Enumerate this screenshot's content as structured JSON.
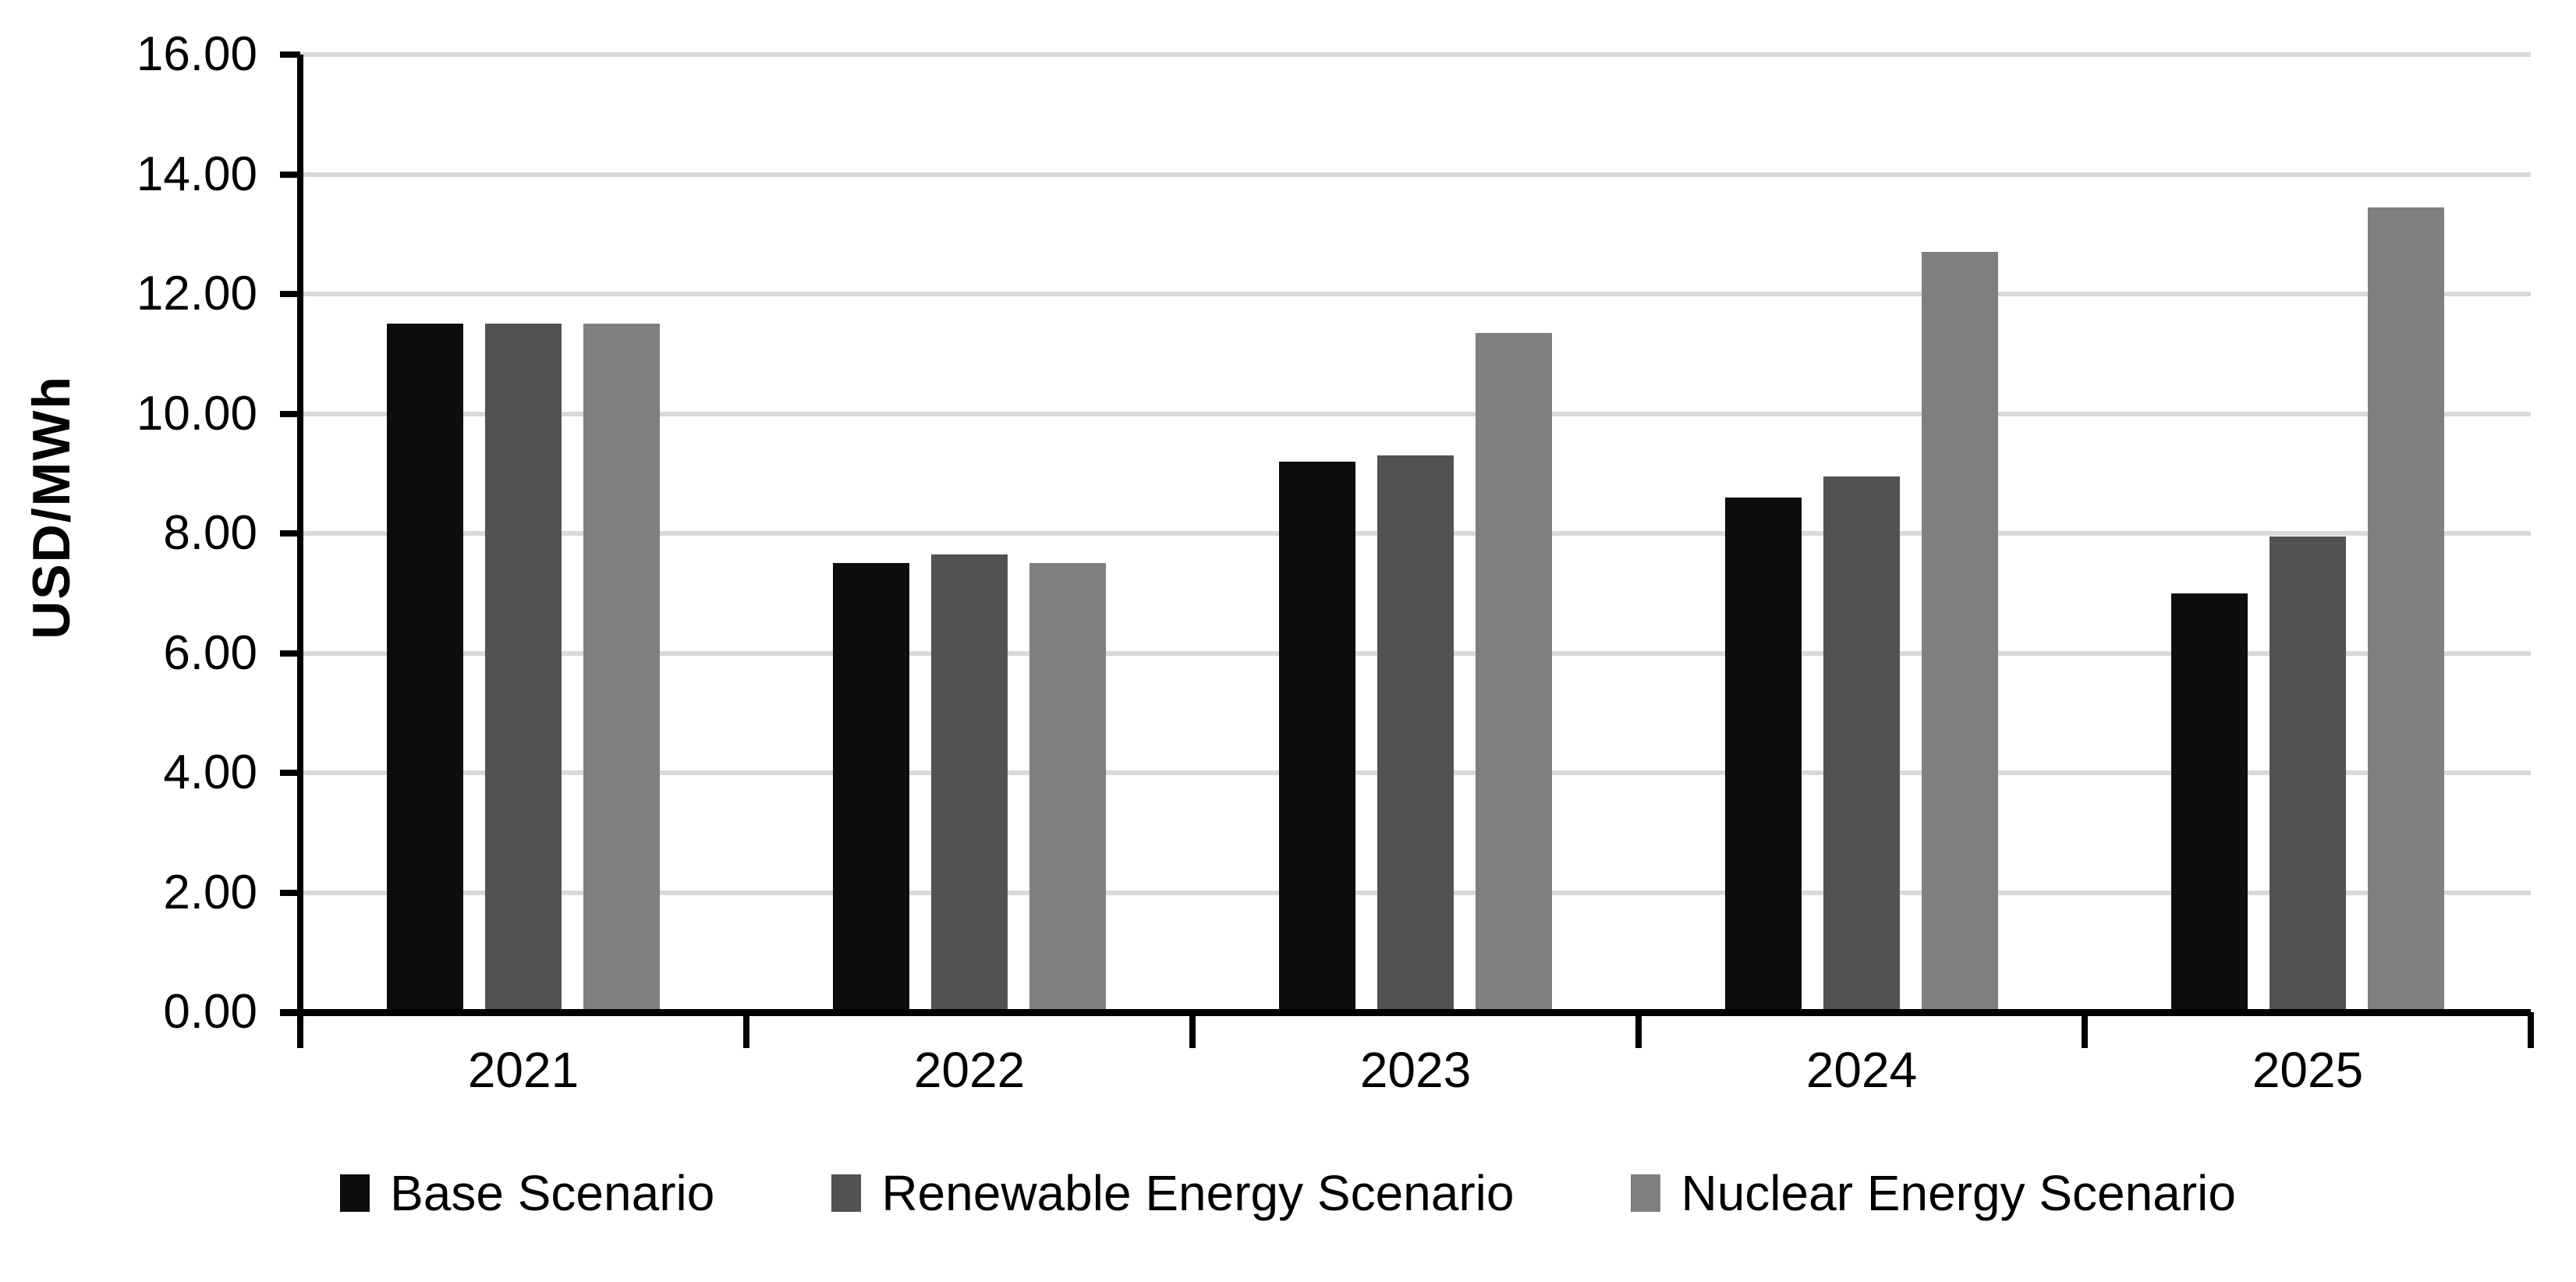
{
  "chart_data": {
    "type": "bar",
    "title": "",
    "xlabel": "",
    "ylabel": "USD/MWh",
    "categories": [
      "2021",
      "2022",
      "2023",
      "2024",
      "2025"
    ],
    "series": [
      {
        "name": "Base Scenario",
        "color": "#0d0d0d",
        "values": [
          11.5,
          7.5,
          9.2,
          8.6,
          7.0
        ]
      },
      {
        "name": "Renewable Energy Scenario",
        "color": "#525252",
        "values": [
          11.5,
          7.65,
          9.3,
          8.95,
          7.95
        ]
      },
      {
        "name": "Nuclear Energy Scenario",
        "color": "#7f7f7f",
        "values": [
          11.5,
          7.5,
          11.35,
          12.7,
          13.45
        ]
      }
    ],
    "ylim": [
      0,
      16
    ],
    "ytick_step": 2,
    "ytick_labels": [
      "0.00",
      "2.00",
      "4.00",
      "6.00",
      "8.00",
      "10.00",
      "12.00",
      "14.00",
      "16.00"
    ],
    "grid": true,
    "gridline_color": "#d9d9d9",
    "axis_color": "#000000",
    "background": "#ffffff",
    "legend_position": "bottom"
  }
}
